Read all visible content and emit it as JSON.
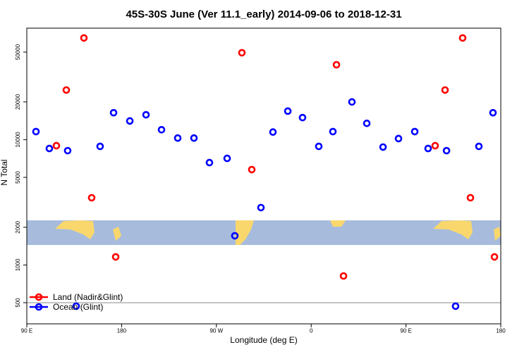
{
  "chart_data": {
    "type": "scatter",
    "title": "45S-30S June (Ver 11.1_early)   2014-09-06 to 2018-12-31",
    "xlabel": "Longitude (deg E)",
    "ylabel": "N Total",
    "xlim": [
      90,
      540
    ],
    "xticks": [
      {
        "value": 90,
        "label": "90 E"
      },
      {
        "value": 180,
        "label": "180"
      },
      {
        "value": 270,
        "label": "90 W"
      },
      {
        "value": 360,
        "label": "0"
      },
      {
        "value": 450,
        "label": "90 E"
      },
      {
        "value": 540,
        "label": "180"
      }
    ],
    "ylim": [
      339,
      77600
    ],
    "ylog": true,
    "yticks": [
      500,
      1000,
      2000,
      5000,
      10000,
      20000,
      50000
    ],
    "legend": "bottomleft",
    "series": [
      {
        "name": "Land (Nadir&Glint)",
        "color": "#ff0000",
        "x": [
          118.1,
          127.5,
          144.2,
          151.6,
          174.4,
          294.2,
          303.6,
          384,
          390.7,
          477.7,
          487.1,
          503.8,
          511.2,
          534
        ],
        "values": [
          8950,
          24900,
          64800,
          3440,
          1160,
          49400,
          5770,
          39600,
          817,
          8950,
          24900,
          64800,
          3440,
          1160
        ]
      },
      {
        "name": "Ocean (Glint)",
        "color": "#0000ff",
        "x": [
          98.7,
          111.4,
          128.8,
          136.9,
          159.6,
          172.4,
          187.8,
          203.2,
          217.9,
          233.3,
          248.7,
          263.4,
          280.2,
          287.5,
          312.3,
          323.7,
          337.8,
          351.8,
          367.2,
          380.6,
          398.7,
          412.8,
          428.2,
          442.9,
          458.3,
          471,
          488.5,
          497.1,
          519.2,
          532.6
        ],
        "values": [
          11600,
          8500,
          8170,
          469,
          8840,
          16400,
          14100,
          15800,
          12000,
          10300,
          10300,
          6560,
          7090,
          1710,
          2870,
          11500,
          16900,
          15000,
          8840,
          11600,
          20000,
          13500,
          8730,
          10200,
          11600,
          8500,
          8170,
          469,
          8840,
          16400
        ]
      }
    ]
  }
}
